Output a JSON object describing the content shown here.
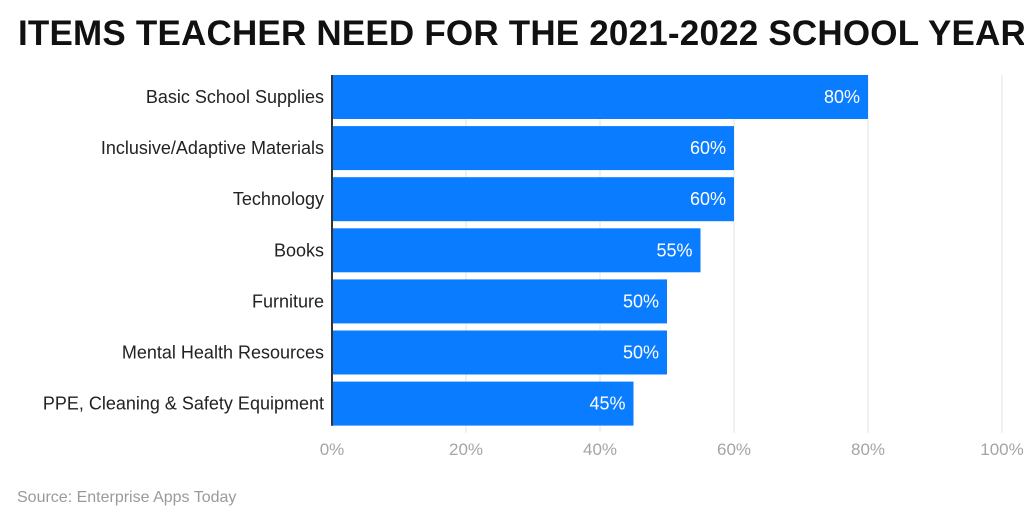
{
  "chart_data": {
    "type": "bar",
    "orientation": "horizontal",
    "title": "ITEMS TEACHER NEED FOR THE 2021-2022 SCHOOL YEAR",
    "categories": [
      "Basic School Supplies",
      "Inclusive/Adaptive Materials",
      "Technology",
      "Books",
      "Furniture",
      "Mental Health Resources",
      "PPE, Cleaning & Safety Equipment"
    ],
    "values": [
      80,
      60,
      60,
      55,
      50,
      50,
      45
    ],
    "data_labels": [
      "80%",
      "60%",
      "60%",
      "55%",
      "50%",
      "50%",
      "45%"
    ],
    "xlim": [
      0,
      100
    ],
    "x_ticks": [
      0,
      20,
      40,
      60,
      80,
      100
    ],
    "x_tick_labels": [
      "0%",
      "20%",
      "40%",
      "60%",
      "80%",
      "100%"
    ],
    "xlabel": "",
    "ylabel": "",
    "grid": true,
    "bar_color": "#0a7cff"
  },
  "source": "Source: Enterprise Apps Today"
}
